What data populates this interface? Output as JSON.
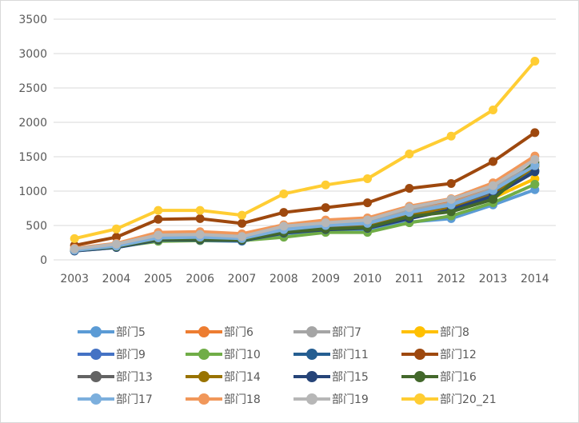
{
  "chart_data": {
    "type": "line",
    "title": "",
    "xlabel": "",
    "ylabel": "",
    "x": [
      "2003",
      "2004",
      "2005",
      "2006",
      "2007",
      "2008",
      "2009",
      "2010",
      "2011",
      "2012",
      "2013",
      "2014"
    ],
    "ylim": [
      0,
      3500
    ],
    "yticks": [
      "0",
      "500",
      "1000",
      "1500",
      "2000",
      "2500",
      "3000",
      "3500"
    ],
    "grid": "horizontal",
    "legend_position": "bottom",
    "series": [
      {
        "name": "部门5",
        "color": "#5b9bd5",
        "values": [
          130,
          180,
          280,
          280,
          270,
          380,
          420,
          430,
          550,
          600,
          800,
          1020
        ]
      },
      {
        "name": "部门6",
        "color": "#ed7d31",
        "values": [
          160,
          230,
          380,
          390,
          360,
          490,
          560,
          590,
          750,
          860,
          1070,
          1360
        ]
      },
      {
        "name": "部门7",
        "color": "#a5a5a5",
        "values": [
          150,
          220,
          350,
          360,
          330,
          460,
          520,
          560,
          720,
          820,
          1030,
          1400
        ]
      },
      {
        "name": "部门8",
        "color": "#ffc000",
        "values": [
          140,
          200,
          310,
          310,
          300,
          420,
          470,
          490,
          640,
          720,
          900,
          1180
        ]
      },
      {
        "name": "部门9",
        "color": "#4472c4",
        "values": [
          140,
          200,
          320,
          330,
          310,
          430,
          490,
          520,
          680,
          780,
          980,
          1300
        ]
      },
      {
        "name": "部门10",
        "color": "#70ad47",
        "values": [
          140,
          190,
          270,
          280,
          280,
          330,
          400,
          400,
          540,
          640,
          830,
          1100
        ]
      },
      {
        "name": "部门11",
        "color": "#255e91",
        "values": [
          140,
          190,
          300,
          310,
          290,
          410,
          470,
          510,
          660,
          760,
          960,
          1300
        ]
      },
      {
        "name": "部门12",
        "color": "#9e480e",
        "values": [
          210,
          330,
          590,
          600,
          530,
          690,
          760,
          830,
          1040,
          1110,
          1430,
          1850
        ]
      },
      {
        "name": "部门13",
        "color": "#636363",
        "values": [
          140,
          200,
          310,
          320,
          300,
          410,
          460,
          490,
          650,
          760,
          960,
          1380
        ]
      },
      {
        "name": "部门14",
        "color": "#997300",
        "values": [
          140,
          200,
          300,
          310,
          300,
          400,
          450,
          480,
          640,
          750,
          940,
          1360
        ]
      },
      {
        "name": "部门15",
        "color": "#264478",
        "values": [
          130,
          180,
          290,
          290,
          280,
          390,
          440,
          460,
          600,
          730,
          930,
          1280
        ]
      },
      {
        "name": "部门16",
        "color": "#43682b",
        "values": [
          140,
          190,
          300,
          300,
          290,
          400,
          450,
          470,
          630,
          700,
          880,
          1420
        ]
      },
      {
        "name": "部门17",
        "color": "#7cafdd",
        "values": [
          140,
          200,
          320,
          330,
          310,
          440,
          500,
          530,
          690,
          800,
          1010,
          1370
        ]
      },
      {
        "name": "部门18",
        "color": "#f1975a",
        "values": [
          170,
          240,
          400,
          410,
          380,
          510,
          580,
          610,
          780,
          890,
          1120,
          1510
        ]
      },
      {
        "name": "部门19",
        "color": "#b7b7b7",
        "values": [
          160,
          230,
          360,
          370,
          340,
          490,
          540,
          580,
          760,
          880,
          1080,
          1460
        ]
      },
      {
        "name": "部门20_21",
        "color": "#ffcd33",
        "values": [
          310,
          450,
          720,
          720,
          650,
          960,
          1090,
          1180,
          1540,
          1800,
          2180,
          2890
        ]
      }
    ]
  }
}
